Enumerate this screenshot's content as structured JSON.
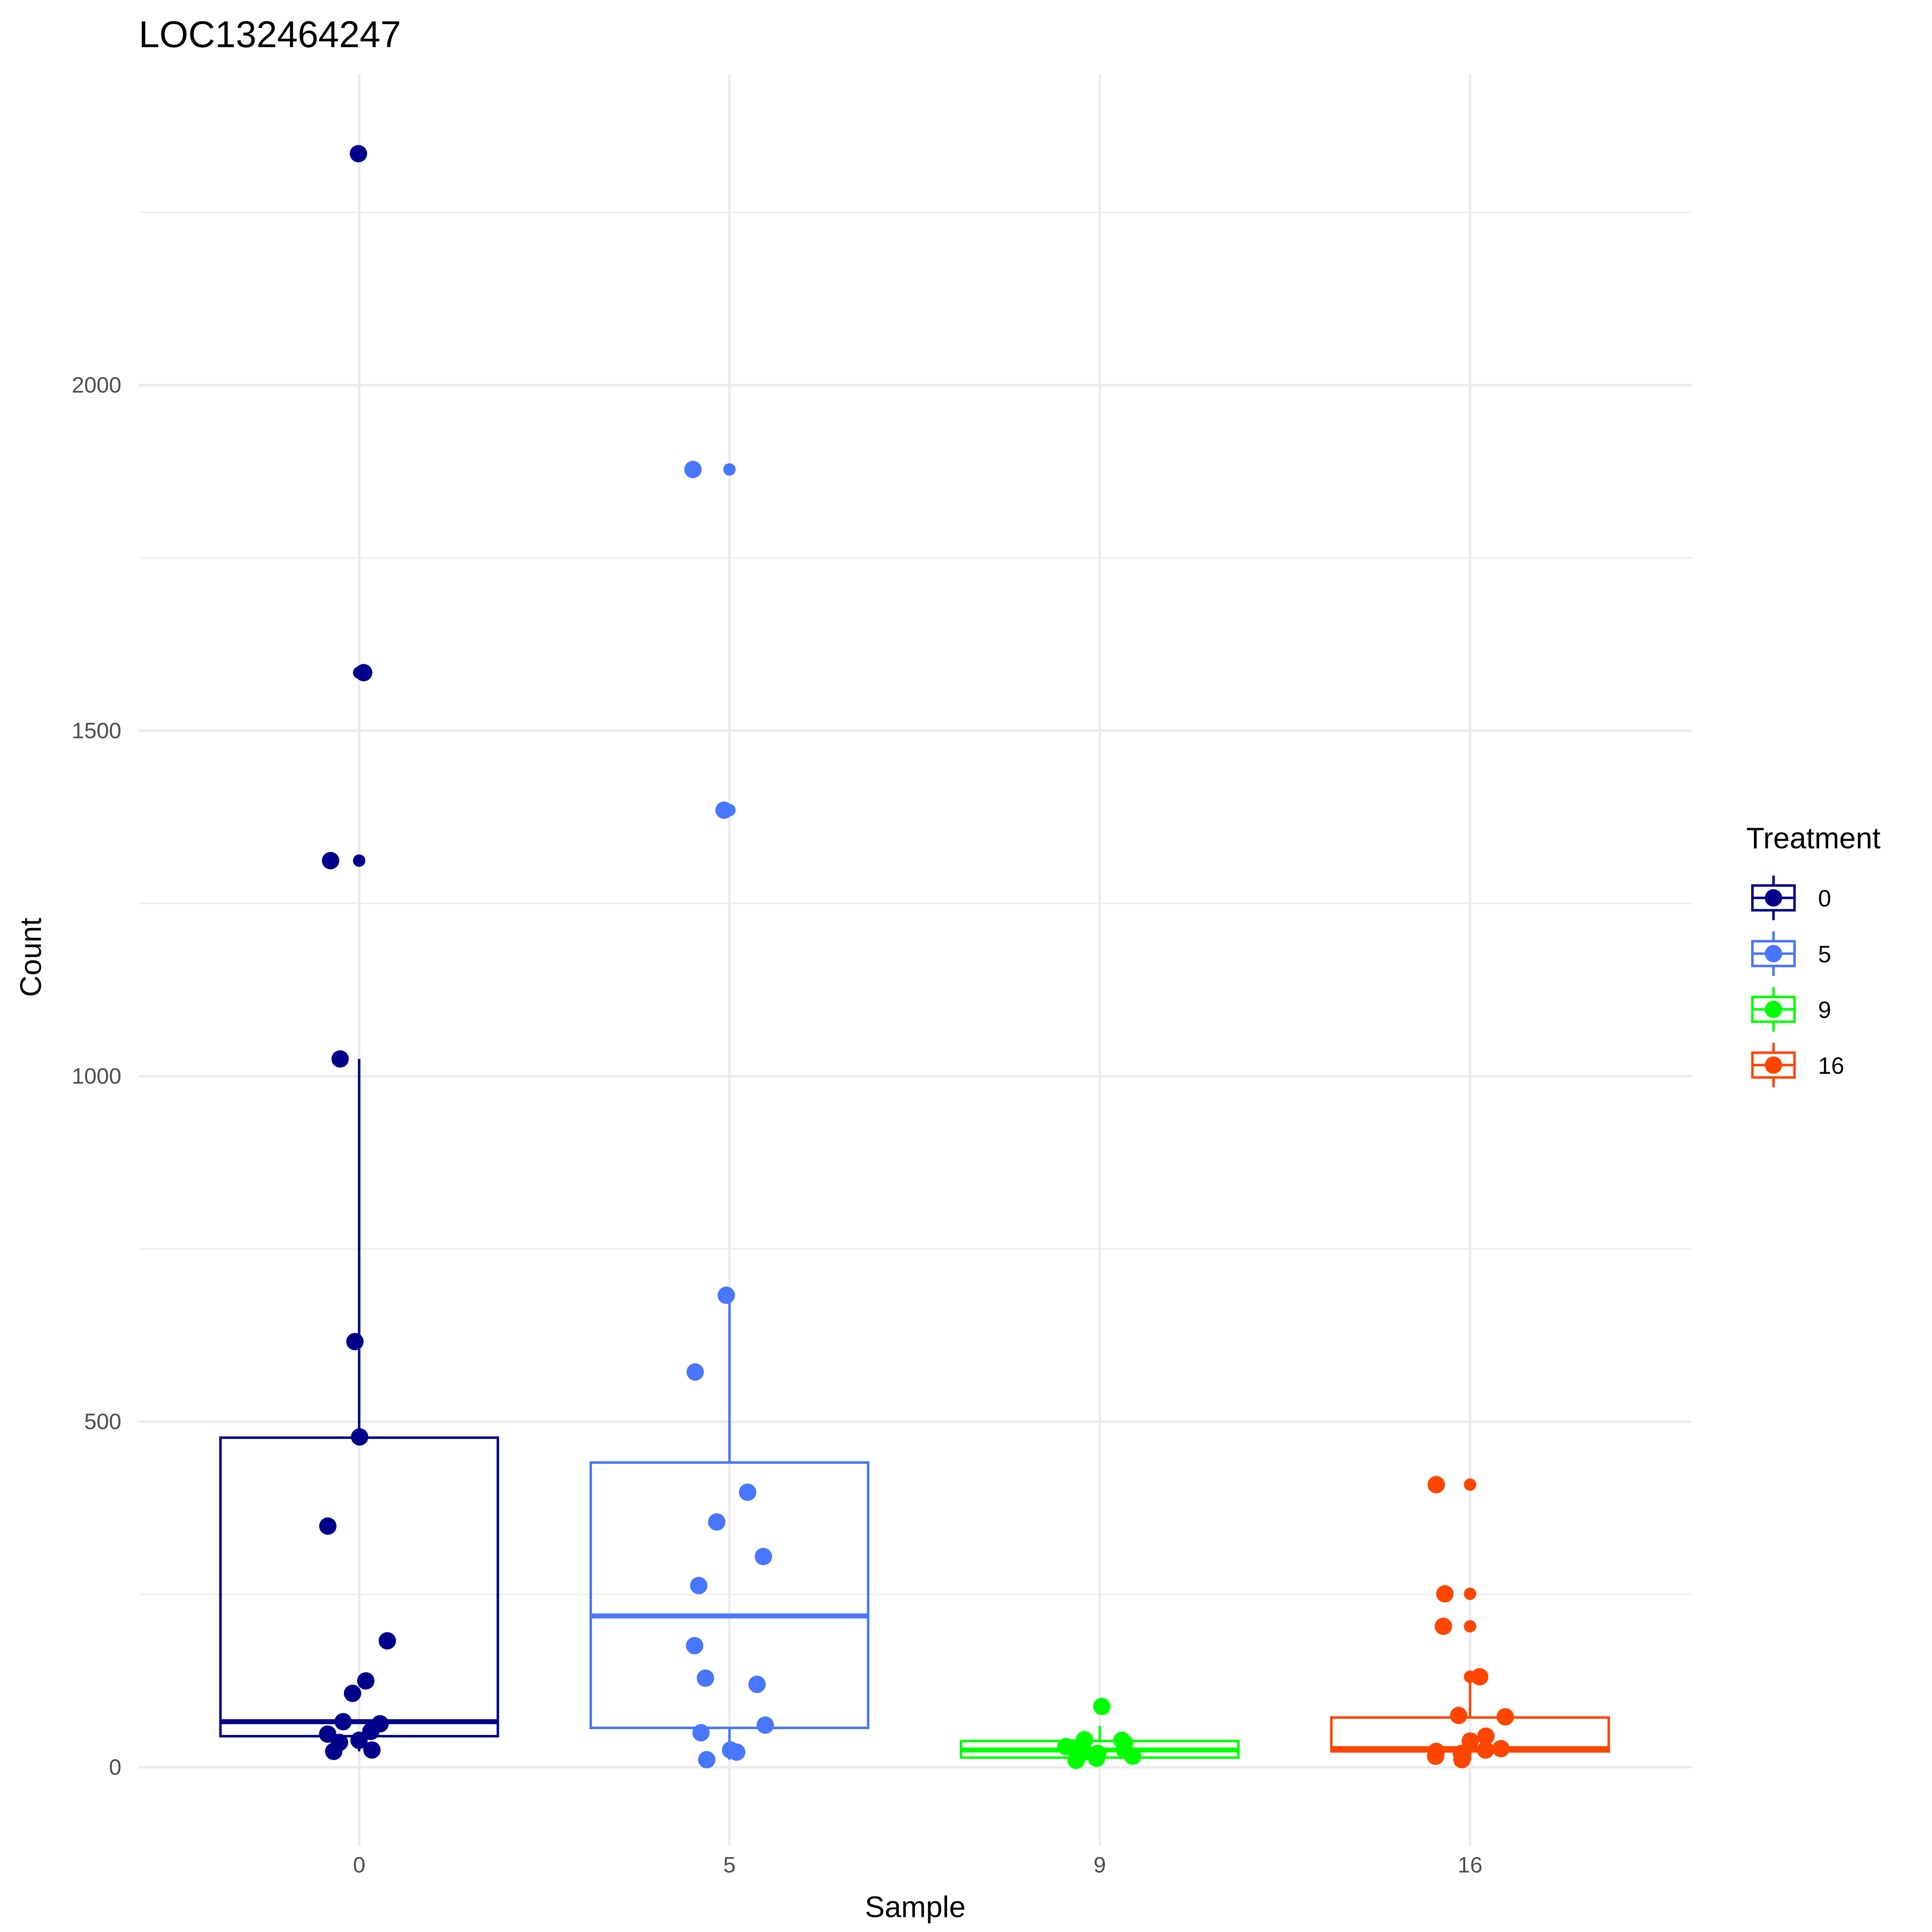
{
  "chart_data": {
    "type": "box",
    "title": "LOC132464247",
    "xlabel": "Sample",
    "ylabel": "Count",
    "ylim": [
      -120,
      2520
    ],
    "yticks": [
      0,
      500,
      1000,
      1500,
      2000
    ],
    "ytick_labels": [
      "0",
      "500",
      "1000",
      "1500",
      "2000"
    ],
    "categories": [
      "0",
      "5",
      "9",
      "16"
    ],
    "legend": {
      "title": "Treatment",
      "position": "right",
      "entries": [
        "0",
        "5",
        "9",
        "16"
      ]
    },
    "colors": [
      "#00008B",
      "#4876FF",
      "#00FF00",
      "#FF4500"
    ],
    "series": [
      {
        "name": "0",
        "box": {
          "lower": 23,
          "q1": 45,
          "median": 66,
          "q3": 477,
          "upper": 1025
        },
        "points": [
          2335,
          1584,
          1312,
          1025,
          616,
          478,
          349,
          183,
          125,
          107,
          66,
          63,
          52,
          48,
          39,
          36,
          25,
          23
        ]
      },
      {
        "name": "5",
        "box": {
          "lower": 11,
          "q1": 57,
          "median": 219,
          "q3": 441,
          "upper": 683
        },
        "points": [
          1878,
          1385,
          683,
          572,
          398,
          355,
          305,
          263,
          176,
          129,
          120,
          61,
          50,
          25,
          22,
          11
        ]
      },
      {
        "name": "9",
        "box": {
          "lower": 10,
          "q1": 14,
          "median": 25,
          "q3": 38,
          "upper": 60
        },
        "points": [
          88,
          40,
          39,
          35,
          30,
          28,
          25,
          22,
          20,
          16,
          13,
          10
        ]
      },
      {
        "name": "16",
        "box": {
          "lower": 10,
          "q1": 23,
          "median": 27,
          "q3": 72,
          "upper": 129
        },
        "points": [
          409,
          251,
          204,
          131,
          75,
          73,
          45,
          38,
          27,
          25,
          23,
          20,
          16,
          11
        ]
      }
    ]
  }
}
